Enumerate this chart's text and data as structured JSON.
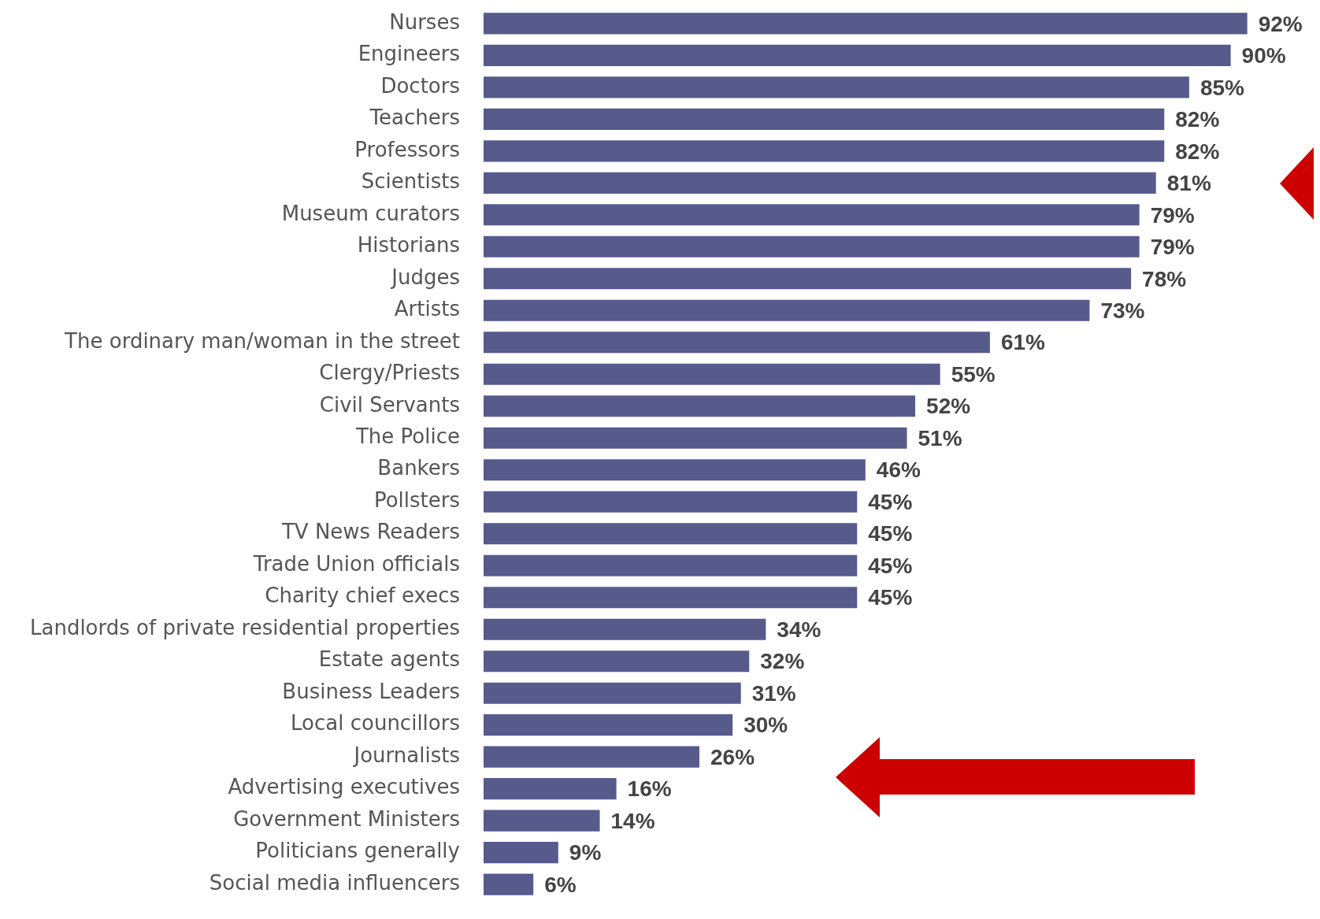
{
  "chart_data": {
    "type": "bar",
    "orientation": "horizontal",
    "categories": [
      "Nurses",
      "Engineers",
      "Doctors",
      "Teachers",
      "Professors",
      "Scientists",
      "Museum curators",
      "Historians",
      "Judges",
      "Artists",
      "The ordinary man/woman in the street",
      "Clergy/Priests",
      "Civil Servants",
      "The Police",
      "Bankers",
      "Pollsters",
      "TV News Readers",
      "Trade Union officials",
      "Charity chief execs",
      "Landlords of private residential properties",
      "Estate agents",
      "Business Leaders",
      "Local councillors",
      "Journalists",
      "Advertising executives",
      "Government Ministers",
      "Politicians generally",
      "Social media influencers"
    ],
    "values": [
      92,
      90,
      85,
      82,
      82,
      81,
      79,
      79,
      78,
      73,
      61,
      55,
      52,
      51,
      46,
      45,
      45,
      45,
      45,
      34,
      32,
      31,
      30,
      26,
      16,
      14,
      9,
      6
    ],
    "value_labels": [
      "92%",
      "90%",
      "85%",
      "82%",
      "82%",
      "81%",
      "79%",
      "79%",
      "78%",
      "73%",
      "61%",
      "55%",
      "52%",
      "51%",
      "46%",
      "45%",
      "45%",
      "45%",
      "45%",
      "34%",
      "32%",
      "31%",
      "30%",
      "26%",
      "16%",
      "14%",
      "9%",
      "6%"
    ],
    "color": "#565b8c",
    "tick_labels": "y"
  }
}
